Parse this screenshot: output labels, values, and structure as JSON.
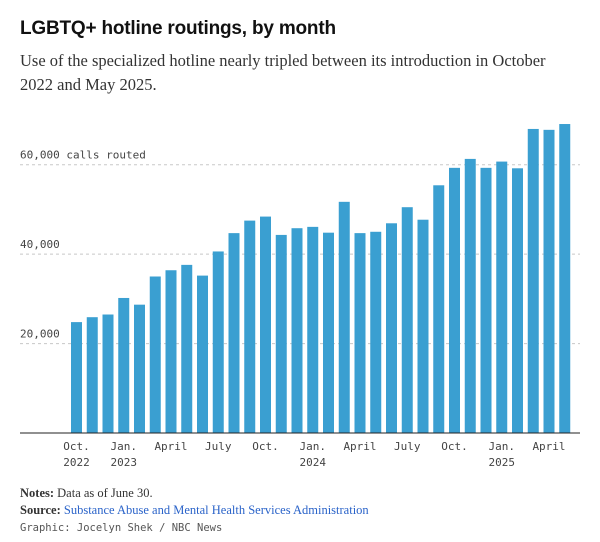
{
  "title": "LGBTQ+ hotline routings, by month",
  "subtitle": "Use of the specialized hotline nearly tripled between its introduction in October 2022 and May 2025.",
  "notes": {
    "label": "Notes:",
    "text": "Data as of June 30."
  },
  "source": {
    "label": "Source:",
    "text": "Substance Abuse and Mental Health Services Administration"
  },
  "credit": "Graphic: Jocelyn Shek / NBC News",
  "colors": {
    "bar": "#3a9fd1",
    "grid": "#c8c8c8",
    "axis": "#222222"
  },
  "chart_data": {
    "type": "bar",
    "ylabel": "calls routed",
    "ylim": [
      0,
      70000
    ],
    "y_ticks": [
      {
        "value": 20000,
        "label": "20,000"
      },
      {
        "value": 40000,
        "label": "40,000"
      },
      {
        "value": 60000,
        "label": "60,000"
      }
    ],
    "y_top_label_suffix": "calls routed",
    "grid": true,
    "categories": [
      "2022-10",
      "2022-11",
      "2022-12",
      "2023-01",
      "2023-02",
      "2023-03",
      "2023-04",
      "2023-05",
      "2023-06",
      "2023-07",
      "2023-08",
      "2023-09",
      "2023-10",
      "2023-11",
      "2023-12",
      "2024-01",
      "2024-02",
      "2024-03",
      "2024-04",
      "2024-05",
      "2024-06",
      "2024-07",
      "2024-08",
      "2024-09",
      "2024-10",
      "2024-11",
      "2024-12",
      "2025-01",
      "2025-02",
      "2025-03",
      "2025-04",
      "2025-05"
    ],
    "values": [
      24800,
      25900,
      26500,
      30200,
      28700,
      35000,
      36400,
      37600,
      35200,
      40600,
      44700,
      47500,
      48400,
      44300,
      45800,
      46100,
      44800,
      51700,
      44700,
      45000,
      46900,
      50500,
      47700,
      55400,
      59300,
      61300,
      59300,
      60700,
      59200,
      68000,
      67800,
      69100
    ],
    "x_tick_labels": [
      {
        "index": 0,
        "line1": "Oct.",
        "line2": "2022"
      },
      {
        "index": 3,
        "line1": "Jan.",
        "line2": "2023"
      },
      {
        "index": 6,
        "line1": "April",
        "line2": ""
      },
      {
        "index": 9,
        "line1": "July",
        "line2": ""
      },
      {
        "index": 12,
        "line1": "Oct.",
        "line2": ""
      },
      {
        "index": 15,
        "line1": "Jan.",
        "line2": "2024"
      },
      {
        "index": 18,
        "line1": "April",
        "line2": ""
      },
      {
        "index": 21,
        "line1": "July",
        "line2": ""
      },
      {
        "index": 24,
        "line1": "Oct.",
        "line2": ""
      },
      {
        "index": 27,
        "line1": "Jan.",
        "line2": "2025"
      },
      {
        "index": 30,
        "line1": "April",
        "line2": ""
      }
    ]
  }
}
